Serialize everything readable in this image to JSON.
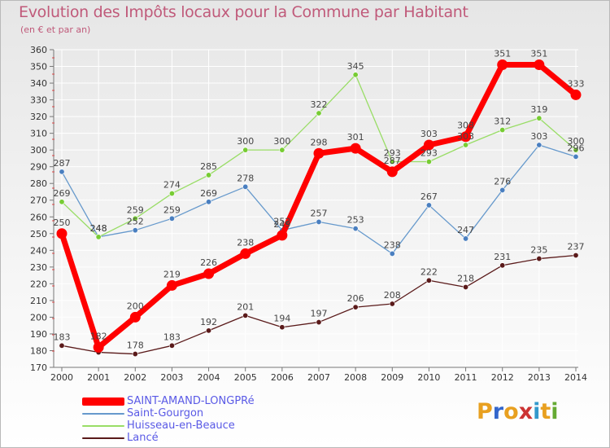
{
  "chart_data": {
    "type": "line",
    "title": "Evolution des Impôts locaux pour la Commune par Habitant",
    "subtitle": "(en € et par an)",
    "x": [
      "2000",
      "2001",
      "2002",
      "2003",
      "2004",
      "2005",
      "2006",
      "2007",
      "2008",
      "2009",
      "2010",
      "2011",
      "2012",
      "2013",
      "2014"
    ],
    "ylim": [
      170,
      360
    ],
    "yticks": [
      170,
      180,
      190,
      200,
      210,
      220,
      230,
      240,
      250,
      260,
      270,
      280,
      290,
      300,
      310,
      320,
      330,
      340,
      350,
      360
    ],
    "grid": true,
    "series": [
      {
        "name": "Lancé",
        "color": "#5a1a1a",
        "values": [
          183,
          179,
          178,
          183,
          192,
          201,
          194,
          197,
          206,
          208,
          222,
          218,
          231,
          235,
          237
        ],
        "labels": [
          "183",
          "",
          "178",
          "183",
          "192",
          "201",
          "194",
          "197",
          "206",
          "208",
          "222",
          "218",
          "231",
          "235",
          "237"
        ]
      },
      {
        "name": "Saint-Gourgon",
        "color": "#6699cc",
        "values": [
          287,
          248,
          252,
          259,
          269,
          278,
          252,
          257,
          253,
          238,
          267,
          247,
          276,
          303,
          296
        ],
        "labels": [
          "287",
          "248",
          "252",
          "259",
          "269",
          "278",
          "252",
          "257",
          "253",
          "238",
          "267",
          "247",
          "276",
          "303",
          "296"
        ]
      },
      {
        "name": "Huisseau-en-Beauce",
        "color": "#99dd66",
        "values": [
          269,
          248,
          259,
          274,
          285,
          300,
          300,
          322,
          345,
          293,
          293,
          303,
          312,
          319,
          300
        ],
        "labels": [
          "269",
          "248",
          "259",
          "274",
          "285",
          "300",
          "300",
          "322",
          "345",
          "293",
          "293",
          "303",
          "312",
          "319",
          "300"
        ]
      },
      {
        "name": "SAINT-AMAND-LONGPRé",
        "color": "#ff0000",
        "values": [
          250,
          182,
          200,
          219,
          226,
          238,
          249,
          298,
          301,
          287,
          303,
          308,
          351,
          351,
          333
        ],
        "labels": [
          "250",
          "182",
          "200",
          "219",
          "226",
          "238",
          "249",
          "298",
          "301",
          "287",
          "303",
          "308",
          "351",
          "351",
          "333"
        ]
      }
    ]
  },
  "legend": [
    {
      "label": "SAINT-AMAND-LONGPRé",
      "color": "#ff0000"
    },
    {
      "label": "Saint-Gourgon",
      "color": "#6699cc"
    },
    {
      "label": "Huisseau-en-Beauce",
      "color": "#99dd66"
    },
    {
      "label": "Lancé",
      "color": "#5a1a1a"
    }
  ],
  "logo": {
    "text": "Proxiti"
  }
}
